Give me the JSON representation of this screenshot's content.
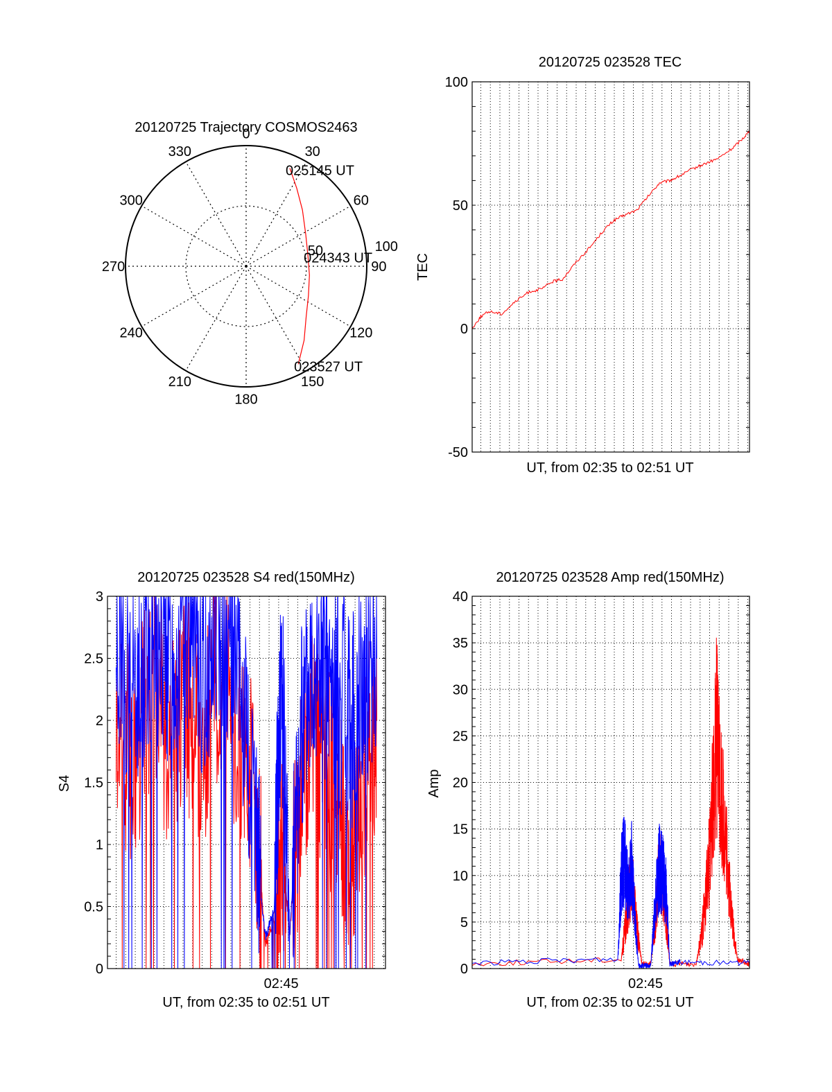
{
  "chart_data": [
    {
      "type": "polar",
      "title": "20120725 Trajectory COSMOS2463",
      "angle_labels": [
        "0",
        "30",
        "60",
        "90",
        "120",
        "150",
        "180",
        "210",
        "240",
        "270",
        "300",
        "330"
      ],
      "radial_labels": [
        "50",
        "100"
      ],
      "zenith_range": [
        0,
        100
      ],
      "grid": true,
      "series": [
        {
          "color": "#ff0000",
          "points": [
            {
              "az": 152,
              "zen": 92
            },
            {
              "az": 142,
              "zen": 78
            },
            {
              "az": 130,
              "zen": 65
            },
            {
              "az": 115,
              "zen": 57
            },
            {
              "az": 98,
              "zen": 53
            },
            {
              "az": 80,
              "zen": 52
            },
            {
              "az": 62,
              "zen": 56
            },
            {
              "az": 45,
              "zen": 66
            },
            {
              "az": 33,
              "zen": 77
            },
            {
              "az": 24,
              "zen": 89
            }
          ]
        }
      ],
      "annotations": [
        {
          "text": "025145 UT",
          "az": 24,
          "zen": 89
        },
        {
          "text": "024343 UT",
          "az": 80,
          "zen": 52
        },
        {
          "text": "023527 UT",
          "az": 152,
          "zen": 92
        }
      ]
    },
    {
      "type": "line",
      "title": "20120725 023528 TEC",
      "xlabel": "UT, from 02:35 to 02:51 UT",
      "ylabel": "TEC",
      "ylim": [
        -50,
        100
      ],
      "yticks": [
        "-50",
        "0",
        "50",
        "100"
      ],
      "xlim_minutes": [
        0,
        16
      ],
      "grid": true,
      "series": [
        {
          "color": "#ff0000",
          "x_minutes": [
            0,
            0.5,
            1,
            1.7,
            2.5,
            3.3,
            4,
            4.6,
            5.2,
            6,
            6.8,
            7.6,
            8.2,
            8.8,
            9.5,
            10.2,
            10.8,
            11.4,
            12,
            12.8,
            13.5,
            14.2,
            15,
            15.6,
            16
          ],
          "values": [
            0,
            5,
            7,
            6,
            11,
            15,
            16,
            19,
            20,
            27,
            33,
            40,
            44,
            46,
            48,
            54,
            59,
            60,
            62,
            65,
            67,
            69,
            73,
            77,
            80
          ]
        }
      ]
    },
    {
      "type": "line",
      "title": "20120725 023528 S4 red(150MHz)",
      "xlabel": "UT, from 02:35 to 02:51 UT",
      "ylabel": "S4",
      "ylim": [
        0,
        3
      ],
      "yticks": [
        "0",
        "0.5",
        "1",
        "1.5",
        "2",
        "2.5",
        "3"
      ],
      "xticks": [
        "02:45"
      ],
      "xlim_minutes": [
        0,
        16
      ],
      "grid": true,
      "series": [
        {
          "color": "#ff0000",
          "x_minutes": [
            0.5,
            1.5,
            2.5,
            3.5,
            4.5,
            5.5,
            6.5,
            7.5,
            8.5,
            9.1,
            9.6,
            10,
            10.5,
            11.1,
            11.8,
            12.5,
            13.2,
            14,
            14.8,
            15.5
          ],
          "values": [
            2.1,
            1.6,
            2.4,
            1.8,
            2.2,
            1.7,
            2.5,
            1.9,
            1.3,
            0.2,
            0.4,
            1.0,
            0.3,
            1.5,
            2.0,
            1.6,
            1.4,
            0.7,
            1.6,
            2.0
          ]
        },
        {
          "color": "#0000ff",
          "x_minutes": [
            0.5,
            1.5,
            2.5,
            3.5,
            4.5,
            5.5,
            6.5,
            7.5,
            8.5,
            9.1,
            9.6,
            10,
            10.5,
            11.1,
            11.8,
            12.5,
            13.2,
            14,
            14.8,
            15.5
          ],
          "values": [
            2.6,
            2.3,
            2.7,
            2.5,
            2.8,
            2.4,
            2.9,
            2.5,
            1.0,
            0.25,
            0.5,
            2.5,
            0.28,
            1.8,
            2.6,
            2.4,
            2.2,
            2.0,
            2.3,
            2.5
          ]
        }
      ]
    },
    {
      "type": "line",
      "title": "20120725 023528 Amp red(150MHz)",
      "xlabel": "UT, from 02:35 to 02:51 UT",
      "ylabel": "Amp",
      "ylim": [
        0,
        40
      ],
      "yticks": [
        "0",
        "5",
        "10",
        "15",
        "20",
        "25",
        "30",
        "35",
        "40"
      ],
      "xticks": [
        "02:45"
      ],
      "xlim_minutes": [
        0,
        16
      ],
      "grid": true,
      "series": [
        {
          "color": "#ff0000",
          "x_minutes": [
            0,
            8.6,
            8.8,
            9.0,
            9.2,
            9.4,
            9.6,
            9.8,
            10.3,
            10.6,
            10.8,
            11.0,
            11.2,
            11.4,
            12.9,
            13.2,
            13.5,
            13.8,
            14.1,
            14.4,
            14.7,
            15.0,
            15.3,
            16
          ],
          "values": [
            0.5,
            1,
            4,
            7,
            10,
            6,
            3,
            0.5,
            0.5,
            6,
            11,
            9,
            5,
            0.5,
            0.5,
            3,
            8,
            15,
            25,
            18,
            12,
            5,
            1,
            0.5
          ]
        },
        {
          "color": "#0000ff",
          "x_minutes": [
            0,
            8.4,
            8.6,
            8.8,
            9.0,
            9.2,
            9.4,
            9.6,
            9.9,
            10.3,
            10.6,
            10.8,
            11.0,
            11.2,
            11.4,
            12,
            16
          ],
          "values": [
            0.6,
            1,
            10,
            12,
            8,
            11,
            5,
            0.3,
            0.3,
            0.3,
            8,
            11,
            10,
            8,
            0.5,
            0.7,
            0.6
          ]
        }
      ]
    }
  ]
}
